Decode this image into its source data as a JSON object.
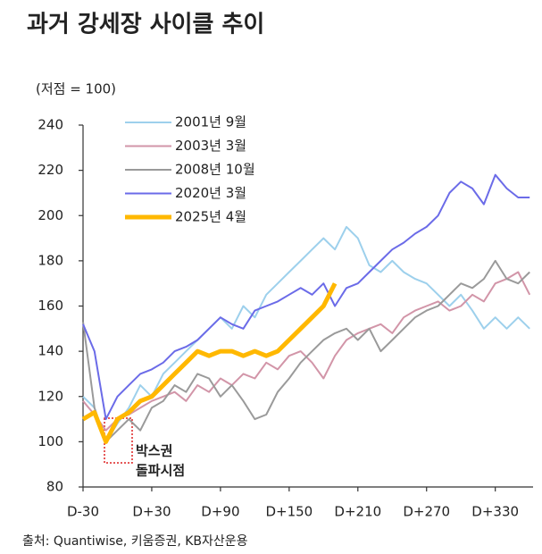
{
  "chart_data": {
    "type": "line",
    "title": "과거 강세장 사이클 추이",
    "y_label": "(저점 = 100)",
    "source": "출처: Quantiwise, 키움증권, KB자산운용",
    "annotation_lines": [
      "박스권",
      "돌파시점"
    ],
    "x": [
      -30,
      -20,
      -10,
      0,
      10,
      20,
      30,
      40,
      50,
      60,
      70,
      80,
      90,
      100,
      110,
      120,
      130,
      140,
      150,
      160,
      170,
      180,
      190,
      200,
      210,
      220,
      230,
      240,
      250,
      260,
      270,
      280,
      290,
      300,
      310,
      320,
      330,
      340,
      350,
      360
    ],
    "xlim": [
      -30,
      363
    ],
    "xticks": [
      {
        "value": -30,
        "label": "D-30"
      },
      {
        "value": 30,
        "label": "D+30"
      },
      {
        "value": 90,
        "label": "D+90"
      },
      {
        "value": 150,
        "label": "D+150"
      },
      {
        "value": 210,
        "label": "D+210"
      },
      {
        "value": 270,
        "label": "D+270"
      },
      {
        "value": 330,
        "label": "D+330"
      }
    ],
    "ylim": [
      80,
      240
    ],
    "yticks": [
      80,
      100,
      120,
      140,
      160,
      180,
      200,
      220,
      240
    ],
    "grid": false,
    "legend": "upper left",
    "series": [
      {
        "name": "2001년 9월",
        "color": "#9dd0ec",
        "width": 2,
        "values": [
          120,
          115,
          100,
          108,
          115,
          125,
          120,
          130,
          135,
          140,
          145,
          150,
          155,
          150,
          160,
          155,
          165,
          170,
          175,
          180,
          185,
          190,
          185,
          195,
          190,
          178,
          175,
          180,
          175,
          172,
          170,
          165,
          160,
          165,
          158,
          150,
          155,
          150,
          155,
          150
        ]
      },
      {
        "name": "2003년 3월",
        "color": "#d295a8",
        "width": 2,
        "values": [
          118,
          112,
          105,
          110,
          112,
          115,
          118,
          120,
          122,
          118,
          125,
          122,
          128,
          125,
          130,
          128,
          135,
          132,
          138,
          140,
          135,
          128,
          138,
          145,
          148,
          150,
          152,
          148,
          155,
          158,
          160,
          162,
          158,
          160,
          165,
          162,
          170,
          172,
          175,
          165
        ]
      },
      {
        "name": "2008년 10월",
        "color": "#9a9a9a",
        "width": 2,
        "values": [
          153,
          115,
          100,
          105,
          110,
          105,
          115,
          118,
          125,
          122,
          130,
          128,
          120,
          125,
          118,
          110,
          112,
          122,
          128,
          135,
          140,
          145,
          148,
          150,
          145,
          150,
          140,
          145,
          150,
          155,
          158,
          160,
          165,
          170,
          168,
          172,
          180,
          172,
          170,
          175
        ]
      },
      {
        "name": "2020년 3월",
        "color": "#6b6be8",
        "width": 2,
        "values": [
          152,
          140,
          110,
          120,
          125,
          130,
          132,
          135,
          140,
          142,
          145,
          150,
          155,
          152,
          150,
          158,
          160,
          162,
          165,
          168,
          165,
          170,
          160,
          168,
          170,
          175,
          180,
          185,
          188,
          192,
          195,
          200,
          210,
          215,
          212,
          205,
          218,
          212,
          208,
          208
        ]
      },
      {
        "name": "2025년 4월",
        "color": "#ffb800",
        "width": 5,
        "values": [
          110,
          113,
          100,
          110,
          113,
          118,
          120,
          125,
          130,
          135,
          140,
          138,
          140,
          140,
          138,
          140,
          138,
          140,
          145,
          150,
          155,
          160,
          170,
          null,
          null,
          null,
          null,
          null,
          null,
          null,
          null,
          null,
          null,
          null,
          null,
          null,
          null,
          null,
          null,
          null
        ]
      }
    ]
  }
}
